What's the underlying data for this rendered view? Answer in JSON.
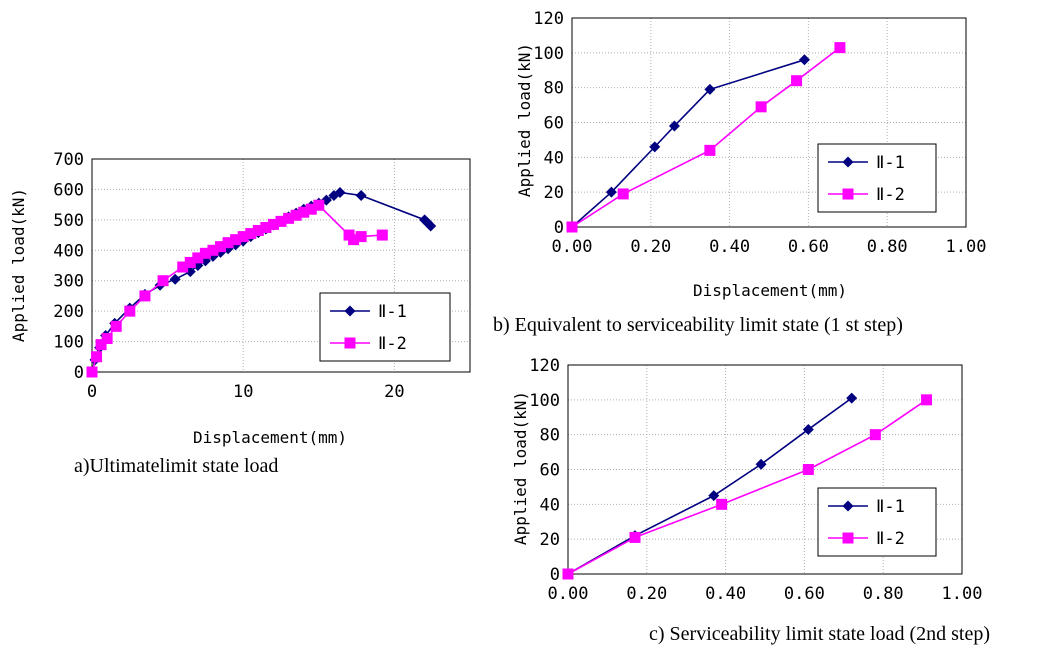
{
  "chart_data": [
    {
      "id": "chart-a",
      "type": "line",
      "caption": "a)Ultimatelimit state load",
      "xlabel": "Displacement(mm)",
      "ylabel": "Applied load(kN)",
      "xlim": [
        0,
        25
      ],
      "ylim": [
        0,
        700
      ],
      "xticks": [
        0,
        10,
        20
      ],
      "xtick_labels": [
        "0",
        "10",
        "20"
      ],
      "yticks": [
        0,
        100,
        200,
        300,
        400,
        500,
        600,
        700
      ],
      "ytick_labels": [
        "0",
        "100",
        "200",
        "300",
        "400",
        "500",
        "600",
        "700"
      ],
      "grid": true,
      "legend_position": "lower-right",
      "series": [
        {
          "name": "Ⅱ-1",
          "color": "#000080",
          "marker": "diamond",
          "x": [
            0,
            0.2,
            0.5,
            0.9,
            1.5,
            2.5,
            3.5,
            4.5,
            5.5,
            6.5,
            7.0,
            7.5,
            8.0,
            8.5,
            9.0,
            9.5,
            10.0,
            10.5,
            11.0,
            11.5,
            12.0,
            12.5,
            13.0,
            13.5,
            14.0,
            14.5,
            15.0,
            15.5,
            16.0,
            16.4,
            17.8,
            22.0,
            22.2,
            22.4
          ],
          "y": [
            0,
            40,
            80,
            120,
            160,
            210,
            255,
            285,
            305,
            330,
            350,
            365,
            380,
            393,
            405,
            418,
            430,
            445,
            458,
            470,
            483,
            495,
            510,
            522,
            535,
            545,
            555,
            565,
            580,
            590,
            580,
            500,
            490,
            480
          ]
        },
        {
          "name": "Ⅱ-2",
          "color": "#ff00ff",
          "marker": "square",
          "x": [
            0,
            0.3,
            0.6,
            1.0,
            1.6,
            2.5,
            3.5,
            4.7,
            6.0,
            6.5,
            7.0,
            7.5,
            8.0,
            8.5,
            9.0,
            9.5,
            10.0,
            10.5,
            11.0,
            11.5,
            12.0,
            12.5,
            13.0,
            13.5,
            14.0,
            14.5,
            15.0,
            17.0,
            17.3,
            17.8,
            19.2
          ],
          "y": [
            0,
            50,
            90,
            110,
            150,
            200,
            250,
            300,
            345,
            360,
            375,
            390,
            400,
            412,
            425,
            435,
            445,
            455,
            465,
            475,
            485,
            495,
            505,
            515,
            525,
            535,
            548,
            450,
            435,
            445,
            450
          ]
        }
      ]
    },
    {
      "id": "chart-b",
      "type": "line",
      "caption": "b) Equivalent to serviceability limit state (1 st step)",
      "xlabel": "Displacement(mm)",
      "ylabel": "Applied load(kN)",
      "xlim": [
        0,
        1.0
      ],
      "ylim": [
        0,
        120
      ],
      "xticks": [
        0,
        0.2,
        0.4,
        0.6,
        0.8,
        1.0
      ],
      "xtick_labels": [
        "0.00",
        "0.20",
        "0.40",
        "0.60",
        "0.80",
        "1.00"
      ],
      "yticks": [
        0,
        20,
        40,
        60,
        80,
        100,
        120
      ],
      "ytick_labels": [
        "0",
        "20",
        "40",
        "60",
        "80",
        "100",
        "120"
      ],
      "grid": true,
      "legend_position": "lower-right",
      "series": [
        {
          "name": "Ⅱ-1",
          "color": "#000080",
          "marker": "diamond",
          "x": [
            0,
            0.1,
            0.21,
            0.26,
            0.35,
            0.59
          ],
          "y": [
            0,
            20,
            46,
            58,
            79,
            96
          ]
        },
        {
          "name": "Ⅱ-2",
          "color": "#ff00ff",
          "marker": "square",
          "x": [
            0,
            0.13,
            0.35,
            0.48,
            0.57,
            0.68
          ],
          "y": [
            0,
            19,
            44,
            69,
            84,
            103
          ]
        }
      ]
    },
    {
      "id": "chart-c",
      "type": "line",
      "caption": "c) Serviceability limit state load (2nd step)",
      "xlabel": "",
      "ylabel": "Applied load(kN)",
      "xlim": [
        0,
        1.0
      ],
      "ylim": [
        0,
        120
      ],
      "xticks": [
        0,
        0.2,
        0.4,
        0.6,
        0.8,
        1.0
      ],
      "xtick_labels": [
        "0.00",
        "0.20",
        "0.40",
        "0.60",
        "0.80",
        "1.00"
      ],
      "yticks": [
        0,
        20,
        40,
        60,
        80,
        100,
        120
      ],
      "ytick_labels": [
        "0",
        "20",
        "40",
        "60",
        "80",
        "100",
        "120"
      ],
      "grid": true,
      "legend_position": "lower-right",
      "series": [
        {
          "name": "Ⅱ-1",
          "color": "#000080",
          "marker": "diamond",
          "x": [
            0,
            0.17,
            0.37,
            0.49,
            0.61,
            0.72
          ],
          "y": [
            0,
            22,
            45,
            63,
            83,
            101
          ]
        },
        {
          "name": "Ⅱ-2",
          "color": "#ff00ff",
          "marker": "square",
          "x": [
            0,
            0.17,
            0.39,
            0.61,
            0.78,
            0.91
          ],
          "y": [
            0,
            21,
            40,
            60,
            80,
            100
          ]
        }
      ]
    }
  ]
}
